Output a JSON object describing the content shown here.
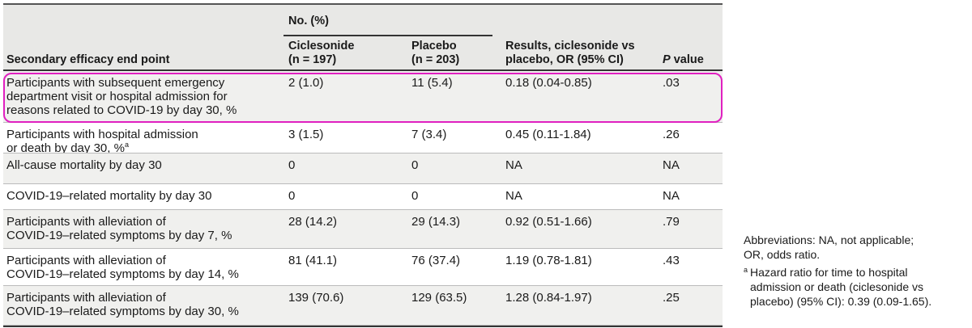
{
  "header": {
    "col1": "Secondary efficacy end point",
    "group": "No. (%)",
    "col2": "Ciclesonide\n(n = 197)",
    "col3": "Placebo\n(n = 203)",
    "col4": "Results, ciclesonide vs\nplacebo, OR (95% CI)",
    "col5_italic": "P",
    "col5_rest": " value"
  },
  "rows": [
    {
      "label": "Participants with subsequent emergency\ndepartment visit or hospital admission for\nreasons related to COVID-19 by day 30, %",
      "cic": "2 (1.0)",
      "plac": "11 (5.4)",
      "or": "0.18 (0.04-0.85)",
      "p": ".03"
    },
    {
      "label": "Participants with hospital admission\nor death by day 30, %",
      "sup": "a",
      "cic": "3 (1.5)",
      "plac": "7 (3.4)",
      "or": "0.45 (0.11-1.84)",
      "p": ".26"
    },
    {
      "label": "All-cause mortality by day 30",
      "cic": "0",
      "plac": "0",
      "or": "NA",
      "p": "NA"
    },
    {
      "label": "COVID-19–related mortality by day 30",
      "cic": "0",
      "plac": "0",
      "or": "NA",
      "p": "NA"
    },
    {
      "label": "Participants with alleviation of\nCOVID-19–related symptoms by day 7, %",
      "cic": "28 (14.2)",
      "plac": "29 (14.3)",
      "or": "0.92 (0.51-1.66)",
      "p": ".79"
    },
    {
      "label": "Participants with alleviation of\nCOVID-19–related symptoms by day 14, %",
      "cic": "81 (41.1)",
      "plac": "76 (37.4)",
      "or": "1.19 (0.78-1.81)",
      "p": ".43"
    },
    {
      "label": "Participants with alleviation of\nCOVID-19–related symptoms by day 30, %",
      "cic": "139 (70.6)",
      "plac": "129 (63.5)",
      "or": "1.28 (0.84-1.97)",
      "p": ".25"
    }
  ],
  "notes": {
    "abbreviations": "Abbreviations: NA, not applicable;\nOR, odds ratio.",
    "footnote_mark": "a",
    "footnote_text": "Hazard ratio for time to hospital\nadmission or death (ciclesonide vs\nplacebo) (95% CI): 0.39 (0.09-1.65)."
  },
  "colors": {
    "highlight": "#e020c0",
    "header_bg": "#e8e8e6",
    "row_shade": "#f0f0ee"
  }
}
